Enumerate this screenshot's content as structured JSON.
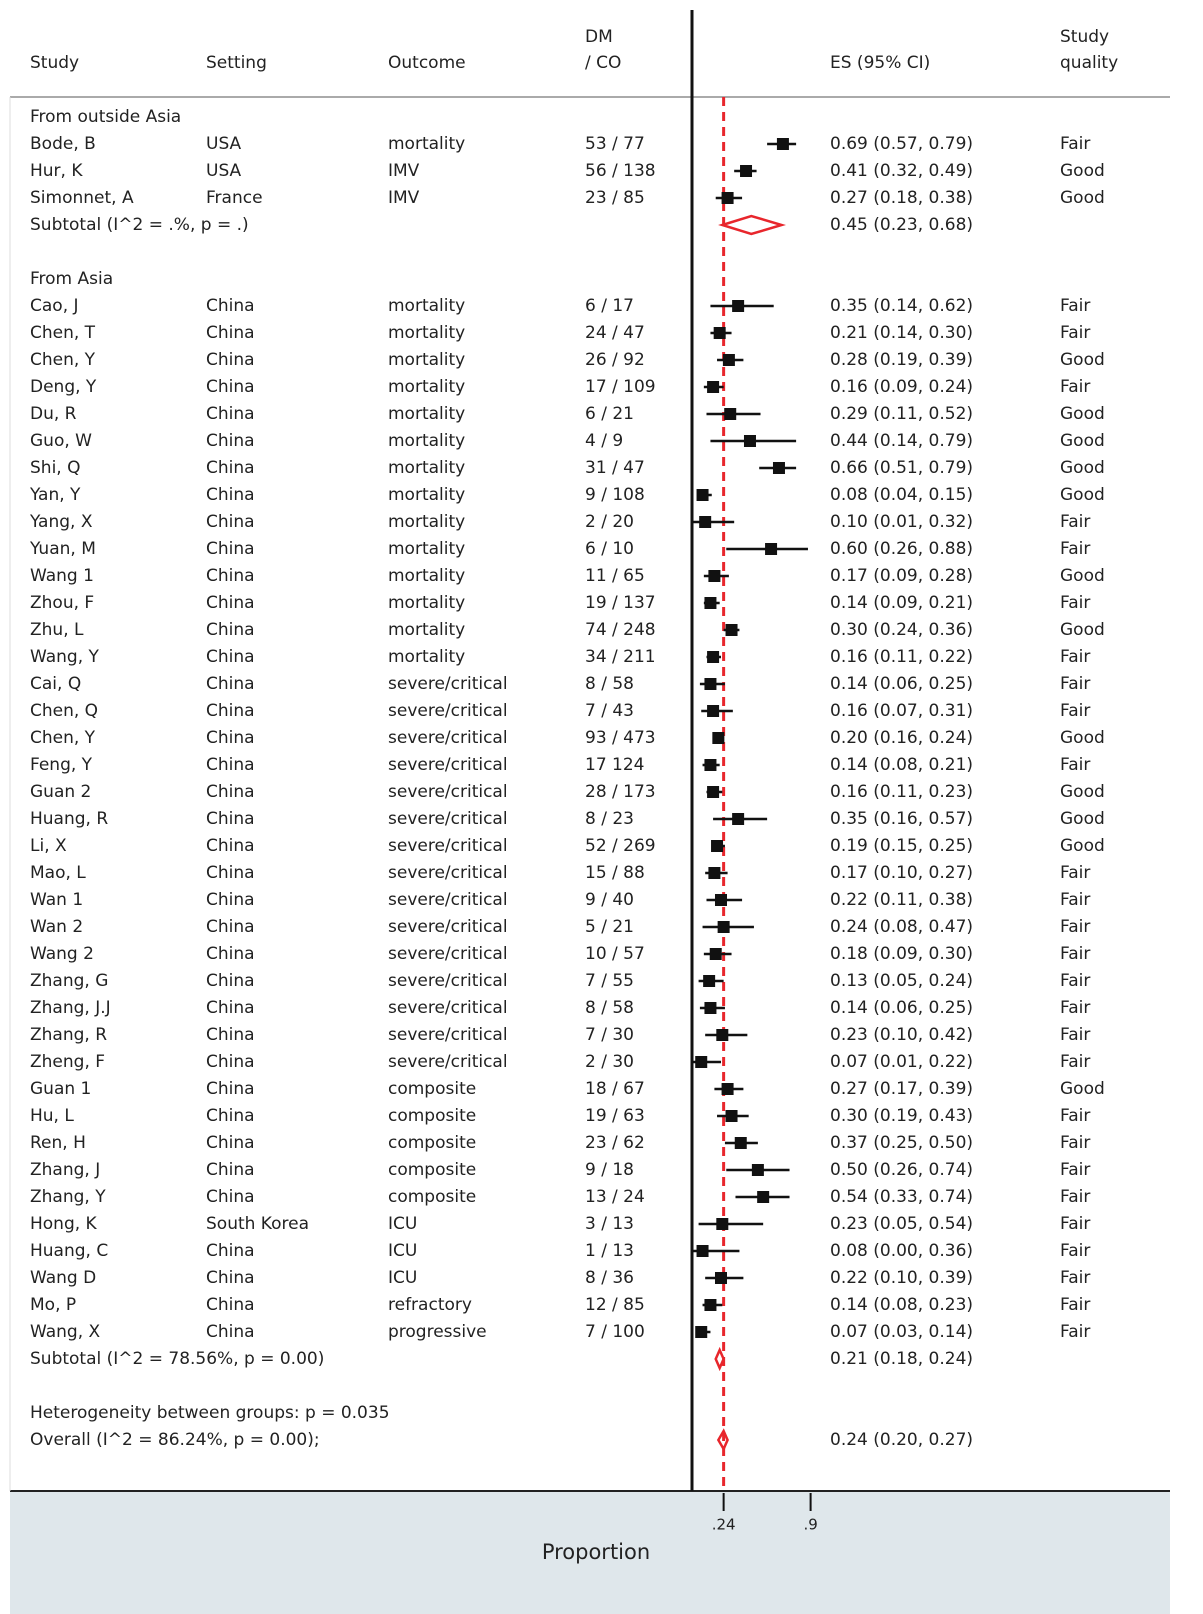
{
  "chart_data": {
    "type": "forest",
    "x_label": "Proportion",
    "xlim": [
      0,
      0.9
    ],
    "xticks": [
      {
        "value": 0.24,
        "label": ".24"
      },
      {
        "value": 0.9,
        "label": ".9"
      }
    ],
    "reference_line": 0.24,
    "reference_color": "#e8262c",
    "box_color": "#111111",
    "diamond_color": "#e8262c",
    "headers": {
      "study": "Study",
      "setting": "Setting",
      "outcome": "Outcome",
      "dmco": [
        "DM",
        "/ CO"
      ],
      "es": "ES (95% CI)",
      "quality": [
        "Study",
        "quality"
      ]
    },
    "groups": [
      {
        "label": "From outside Asia",
        "studies": [
          {
            "study": "Bode, B",
            "setting": "USA",
            "outcome": "mortality",
            "dmco": "53 / 77",
            "es": 0.69,
            "lo": 0.57,
            "hi": 0.79,
            "es_label": "0.69 (0.57, 0.79)",
            "quality": "Fair"
          },
          {
            "study": "Hur, K",
            "setting": "USA",
            "outcome": "IMV",
            "dmco": "56 / 138",
            "es": 0.41,
            "lo": 0.32,
            "hi": 0.49,
            "es_label": "0.41 (0.32, 0.49)",
            "quality": "Good"
          },
          {
            "study": "Simonnet, A",
            "setting": "France",
            "outcome": "IMV",
            "dmco": "23 / 85",
            "es": 0.27,
            "lo": 0.18,
            "hi": 0.38,
            "es_label": "0.27 (0.18, 0.38)",
            "quality": "Good"
          }
        ],
        "subtotal": {
          "label": "Subtotal  (I^2 = .%, p = .)",
          "es": 0.45,
          "lo": 0.23,
          "hi": 0.68,
          "es_label": "0.45 (0.23, 0.68)"
        }
      },
      {
        "label": "From Asia",
        "studies": [
          {
            "study": "Cao, J",
            "setting": "China",
            "outcome": "mortality",
            "dmco": "6 / 17",
            "es": 0.35,
            "lo": 0.14,
            "hi": 0.62,
            "es_label": "0.35 (0.14, 0.62)",
            "quality": "Fair"
          },
          {
            "study": "Chen, T",
            "setting": "China",
            "outcome": "mortality",
            "dmco": "24 / 47",
            "es": 0.21,
            "lo": 0.14,
            "hi": 0.3,
            "es_label": "0.21 (0.14, 0.30)",
            "quality": "Fair"
          },
          {
            "study": "Chen, Y",
            "setting": "China",
            "outcome": "mortality",
            "dmco": "26 / 92",
            "es": 0.28,
            "lo": 0.19,
            "hi": 0.39,
            "es_label": "0.28 (0.19, 0.39)",
            "quality": "Good"
          },
          {
            "study": "Deng, Y",
            "setting": "China",
            "outcome": "mortality",
            "dmco": "17 / 109",
            "es": 0.16,
            "lo": 0.09,
            "hi": 0.24,
            "es_label": "0.16 (0.09, 0.24)",
            "quality": "Fair"
          },
          {
            "study": "Du, R",
            "setting": "China",
            "outcome": "mortality",
            "dmco": "6 / 21",
            "es": 0.29,
            "lo": 0.11,
            "hi": 0.52,
            "es_label": "0.29 (0.11, 0.52)",
            "quality": "Good"
          },
          {
            "study": "Guo, W",
            "setting": "China",
            "outcome": "mortality",
            "dmco": "4 / 9",
            "es": 0.44,
            "lo": 0.14,
            "hi": 0.79,
            "es_label": "0.44 (0.14, 0.79)",
            "quality": "Good"
          },
          {
            "study": "Shi, Q",
            "setting": "China",
            "outcome": "mortality",
            "dmco": "31 / 47",
            "es": 0.66,
            "lo": 0.51,
            "hi": 0.79,
            "es_label": "0.66 (0.51, 0.79)",
            "quality": "Good"
          },
          {
            "study": "Yan, Y",
            "setting": "China",
            "outcome": "mortality",
            "dmco": "9 / 108",
            "es": 0.08,
            "lo": 0.04,
            "hi": 0.15,
            "es_label": "0.08 (0.04, 0.15)",
            "quality": "Good"
          },
          {
            "study": "Yang, X",
            "setting": "China",
            "outcome": "mortality",
            "dmco": "2 / 20",
            "es": 0.1,
            "lo": 0.01,
            "hi": 0.32,
            "es_label": "0.10 (0.01, 0.32)",
            "quality": "Fair"
          },
          {
            "study": "Yuan, M",
            "setting": "China",
            "outcome": "mortality",
            "dmco": "6 / 10",
            "es": 0.6,
            "lo": 0.26,
            "hi": 0.88,
            "es_label": "0.60 (0.26, 0.88)",
            "quality": "Fair"
          },
          {
            "study": "Wang 1",
            "setting": "China",
            "outcome": "mortality",
            "dmco": "11 / 65",
            "es": 0.17,
            "lo": 0.09,
            "hi": 0.28,
            "es_label": "0.17 (0.09, 0.28)",
            "quality": "Good"
          },
          {
            "study": "Zhou, F",
            "setting": "China",
            "outcome": "mortality",
            "dmco": "19 / 137",
            "es": 0.14,
            "lo": 0.09,
            "hi": 0.21,
            "es_label": "0.14 (0.09, 0.21)",
            "quality": "Fair"
          },
          {
            "study": "Zhu, L",
            "setting": "China",
            "outcome": "mortality",
            "dmco": "74 / 248",
            "es": 0.3,
            "lo": 0.24,
            "hi": 0.36,
            "es_label": "0.30 (0.24, 0.36)",
            "quality": "Good"
          },
          {
            "study": "Wang, Y",
            "setting": "China",
            "outcome": "mortality",
            "dmco": "34 / 211",
            "es": 0.16,
            "lo": 0.11,
            "hi": 0.22,
            "es_label": "0.16 (0.11, 0.22)",
            "quality": "Fair"
          },
          {
            "study": "Cai, Q",
            "setting": "China",
            "outcome": "severe/critical",
            "dmco": "8 / 58",
            "es": 0.14,
            "lo": 0.06,
            "hi": 0.25,
            "es_label": "0.14 (0.06, 0.25)",
            "quality": "Fair"
          },
          {
            "study": "Chen, Q",
            "setting": "China",
            "outcome": "severe/critical",
            "dmco": "7 / 43",
            "es": 0.16,
            "lo": 0.07,
            "hi": 0.31,
            "es_label": "0.16 (0.07, 0.31)",
            "quality": "Fair"
          },
          {
            "study": "Chen, Y",
            "setting": "China",
            "outcome": "severe/critical",
            "dmco": "93 / 473",
            "es": 0.2,
            "lo": 0.16,
            "hi": 0.24,
            "es_label": "0.20 (0.16, 0.24)",
            "quality": "Good"
          },
          {
            "study": "Feng, Y",
            "setting": "China",
            "outcome": "severe/critical",
            "dmco": "17  124",
            "es": 0.14,
            "lo": 0.08,
            "hi": 0.21,
            "es_label": "0.14 (0.08, 0.21)",
            "quality": "Fair"
          },
          {
            "study": "Guan 2",
            "setting": "China",
            "outcome": "severe/critical",
            "dmco": "28 / 173",
            "es": 0.16,
            "lo": 0.11,
            "hi": 0.23,
            "es_label": "0.16 (0.11, 0.23)",
            "quality": "Good"
          },
          {
            "study": "Huang, R",
            "setting": "China",
            "outcome": "severe/critical",
            "dmco": "8 / 23",
            "es": 0.35,
            "lo": 0.16,
            "hi": 0.57,
            "es_label": "0.35 (0.16, 0.57)",
            "quality": "Good"
          },
          {
            "study": "Li, X",
            "setting": "China",
            "outcome": "severe/critical",
            "dmco": "52 / 269",
            "es": 0.19,
            "lo": 0.15,
            "hi": 0.25,
            "es_label": "0.19 (0.15, 0.25)",
            "quality": "Good"
          },
          {
            "study": "Mao, L",
            "setting": "China",
            "outcome": "severe/critical",
            "dmco": "15 / 88",
            "es": 0.17,
            "lo": 0.1,
            "hi": 0.27,
            "es_label": "0.17 (0.10, 0.27)",
            "quality": "Fair"
          },
          {
            "study": "Wan 1",
            "setting": "China",
            "outcome": "severe/critical",
            "dmco": "9 / 40",
            "es": 0.22,
            "lo": 0.11,
            "hi": 0.38,
            "es_label": "0.22 (0.11, 0.38)",
            "quality": "Fair"
          },
          {
            "study": "Wan 2",
            "setting": "China",
            "outcome": "severe/critical",
            "dmco": "5 / 21",
            "es": 0.24,
            "lo": 0.08,
            "hi": 0.47,
            "es_label": "0.24 (0.08, 0.47)",
            "quality": "Fair"
          },
          {
            "study": "Wang 2",
            "setting": "China",
            "outcome": "severe/critical",
            "dmco": "10 / 57",
            "es": 0.18,
            "lo": 0.09,
            "hi": 0.3,
            "es_label": "0.18 (0.09, 0.30)",
            "quality": "Fair"
          },
          {
            "study": "Zhang, G",
            "setting": "China",
            "outcome": "severe/critical",
            "dmco": "7 / 55",
            "es": 0.13,
            "lo": 0.05,
            "hi": 0.24,
            "es_label": "0.13 (0.05, 0.24)",
            "quality": "Fair"
          },
          {
            "study": "Zhang, J.J",
            "setting": "China",
            "outcome": "severe/critical",
            "dmco": "8 / 58",
            "es": 0.14,
            "lo": 0.06,
            "hi": 0.25,
            "es_label": "0.14 (0.06, 0.25)",
            "quality": "Fair"
          },
          {
            "study": "Zhang, R",
            "setting": "China",
            "outcome": "severe/critical",
            "dmco": "7 / 30",
            "es": 0.23,
            "lo": 0.1,
            "hi": 0.42,
            "es_label": "0.23 (0.10, 0.42)",
            "quality": "Fair"
          },
          {
            "study": "Zheng, F",
            "setting": "China",
            "outcome": "severe/critical",
            "dmco": "2 / 30",
            "es": 0.07,
            "lo": 0.01,
            "hi": 0.22,
            "es_label": "0.07 (0.01, 0.22)",
            "quality": "Fair"
          },
          {
            "study": "Guan 1",
            "setting": "China",
            "outcome": "composite",
            "dmco": "18 / 67",
            "es": 0.27,
            "lo": 0.17,
            "hi": 0.39,
            "es_label": "0.27 (0.17, 0.39)",
            "quality": "Good"
          },
          {
            "study": "Hu, L",
            "setting": "China",
            "outcome": "composite",
            "dmco": "19 / 63",
            "es": 0.3,
            "lo": 0.19,
            "hi": 0.43,
            "es_label": "0.30 (0.19, 0.43)",
            "quality": "Fair"
          },
          {
            "study": "Ren, H",
            "setting": "China",
            "outcome": "composite",
            "dmco": "23 / 62",
            "es": 0.37,
            "lo": 0.25,
            "hi": 0.5,
            "es_label": "0.37 (0.25, 0.50)",
            "quality": "Fair"
          },
          {
            "study": "Zhang, J",
            "setting": "China",
            "outcome": "composite",
            "dmco": "9 / 18",
            "es": 0.5,
            "lo": 0.26,
            "hi": 0.74,
            "es_label": "0.50 (0.26, 0.74)",
            "quality": "Fair"
          },
          {
            "study": "Zhang, Y",
            "setting": "China",
            "outcome": "composite",
            "dmco": "13 / 24",
            "es": 0.54,
            "lo": 0.33,
            "hi": 0.74,
            "es_label": "0.54 (0.33, 0.74)",
            "quality": "Fair"
          },
          {
            "study": "Hong, K",
            "setting": "South Korea",
            "outcome": "ICU",
            "dmco": "3 / 13",
            "es": 0.23,
            "lo": 0.05,
            "hi": 0.54,
            "es_label": "0.23 (0.05, 0.54)",
            "quality": "Fair"
          },
          {
            "study": "Huang, C",
            "setting": "China",
            "outcome": "ICU",
            "dmco": "1 / 13",
            "es": 0.08,
            "lo": 0.0,
            "hi": 0.36,
            "es_label": "0.08 (0.00, 0.36)",
            "quality": "Fair"
          },
          {
            "study": "Wang D",
            "setting": "China",
            "outcome": "ICU",
            "dmco": "8 / 36",
            "es": 0.22,
            "lo": 0.1,
            "hi": 0.39,
            "es_label": "0.22 (0.10, 0.39)",
            "quality": "Fair"
          },
          {
            "study": "Mo, P",
            "setting": "China",
            "outcome": "refractory",
            "dmco": "12 / 85",
            "es": 0.14,
            "lo": 0.08,
            "hi": 0.23,
            "es_label": "0.14 (0.08, 0.23)",
            "quality": "Fair"
          },
          {
            "study": "Wang, X",
            "setting": "China",
            "outcome": "progressive",
            "dmco": "7 / 100",
            "es": 0.07,
            "lo": 0.03,
            "hi": 0.14,
            "es_label": "0.07 (0.03, 0.14)",
            "quality": "Fair"
          }
        ],
        "subtotal": {
          "label": "Subtotal  (I^2 = 78.56%, p = 0.00)",
          "es": 0.21,
          "lo": 0.18,
          "hi": 0.24,
          "es_label": "0.21 (0.18, 0.24)"
        }
      }
    ],
    "heterogeneity": "Heterogeneity between groups: p = 0.035",
    "overall": {
      "label": "Overall  (I^2 = 86.24%, p = 0.00);",
      "es": 0.24,
      "lo": 0.2,
      "hi": 0.27,
      "es_label": "0.24 (0.20, 0.27)"
    }
  }
}
